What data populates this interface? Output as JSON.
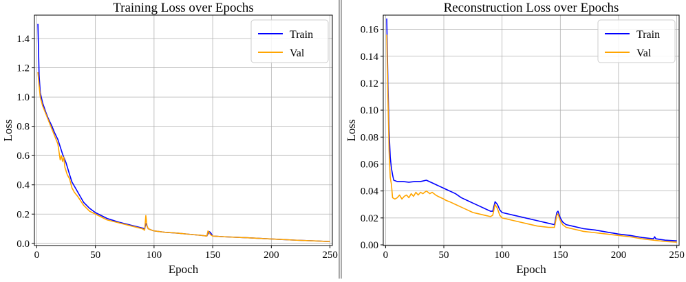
{
  "chart_data": [
    {
      "type": "line",
      "title": "Training Loss over Epochs",
      "xlabel": "Epoch",
      "ylabel": "Loss",
      "xlim": [
        -2,
        252
      ],
      "ylim": [
        -0.015,
        1.56
      ],
      "xticks": [
        0,
        50,
        100,
        150,
        200,
        250
      ],
      "xtick_labels": [
        "0",
        "50",
        "100",
        "150",
        "200",
        "250"
      ],
      "yticks": [
        0.0,
        0.2,
        0.4,
        0.6,
        0.8,
        1.0,
        1.2,
        1.4
      ],
      "ytick_labels": [
        "0.0",
        "0.2",
        "0.4",
        "0.6",
        "0.8",
        "1.0",
        "1.2",
        "1.4"
      ],
      "grid": true,
      "legend_position": "top-right",
      "series": [
        {
          "name": "Train",
          "color": "#0000ff",
          "points": [
            [
              1,
              1.5
            ],
            [
              2,
              1.15
            ],
            [
              3,
              1.03
            ],
            [
              5,
              0.96
            ],
            [
              8,
              0.89
            ],
            [
              10,
              0.85
            ],
            [
              13,
              0.8
            ],
            [
              15,
              0.76
            ],
            [
              18,
              0.71
            ],
            [
              20,
              0.66
            ],
            [
              22,
              0.61
            ],
            [
              25,
              0.55
            ],
            [
              28,
              0.47
            ],
            [
              30,
              0.42
            ],
            [
              35,
              0.35
            ],
            [
              40,
              0.28
            ],
            [
              45,
              0.24
            ],
            [
              50,
              0.21
            ],
            [
              55,
              0.19
            ],
            [
              60,
              0.17
            ],
            [
              70,
              0.145
            ],
            [
              80,
              0.125
            ],
            [
              90,
              0.105
            ],
            [
              92,
              0.1
            ],
            [
              93,
              0.135
            ],
            [
              94,
              0.12
            ],
            [
              95,
              0.1
            ],
            [
              98,
              0.09
            ],
            [
              100,
              0.085
            ],
            [
              110,
              0.075
            ],
            [
              120,
              0.07
            ],
            [
              130,
              0.062
            ],
            [
              140,
              0.055
            ],
            [
              145,
              0.05
            ],
            [
              147,
              0.08
            ],
            [
              148,
              0.075
            ],
            [
              150,
              0.05
            ],
            [
              160,
              0.045
            ],
            [
              180,
              0.038
            ],
            [
              200,
              0.03
            ],
            [
              220,
              0.022
            ],
            [
              240,
              0.016
            ],
            [
              250,
              0.012
            ]
          ]
        },
        {
          "name": "Val",
          "color": "#ffa500",
          "points": [
            [
              1,
              1.17
            ],
            [
              2,
              1.08
            ],
            [
              3,
              1.0
            ],
            [
              5,
              0.94
            ],
            [
              8,
              0.88
            ],
            [
              10,
              0.84
            ],
            [
              13,
              0.78
            ],
            [
              15,
              0.74
            ],
            [
              18,
              0.68
            ],
            [
              20,
              0.57
            ],
            [
              21,
              0.6
            ],
            [
              22,
              0.56
            ],
            [
              23,
              0.59
            ],
            [
              24,
              0.52
            ],
            [
              26,
              0.47
            ],
            [
              28,
              0.44
            ],
            [
              30,
              0.38
            ],
            [
              32,
              0.35
            ],
            [
              35,
              0.32
            ],
            [
              40,
              0.26
            ],
            [
              45,
              0.22
            ],
            [
              50,
              0.2
            ],
            [
              55,
              0.18
            ],
            [
              60,
              0.16
            ],
            [
              70,
              0.14
            ],
            [
              80,
              0.12
            ],
            [
              90,
              0.1
            ],
            [
              92,
              0.09
            ],
            [
              93,
              0.19
            ],
            [
              94,
              0.12
            ],
            [
              95,
              0.1
            ],
            [
              98,
              0.09
            ],
            [
              100,
              0.085
            ],
            [
              110,
              0.075
            ],
            [
              120,
              0.07
            ],
            [
              130,
              0.062
            ],
            [
              140,
              0.055
            ],
            [
              145,
              0.05
            ],
            [
              146,
              0.085
            ],
            [
              147,
              0.075
            ],
            [
              148,
              0.06
            ],
            [
              150,
              0.05
            ],
            [
              160,
              0.045
            ],
            [
              180,
              0.038
            ],
            [
              200,
              0.03
            ],
            [
              220,
              0.022
            ],
            [
              240,
              0.016
            ],
            [
              250,
              0.012
            ]
          ]
        }
      ]
    },
    {
      "type": "line",
      "title": "Reconstruction Loss over Epochs",
      "xlabel": "Epoch",
      "ylabel": "Loss",
      "xlim": [
        -2,
        252
      ],
      "ylim": [
        -0.0005,
        0.1705
      ],
      "xticks": [
        0,
        50,
        100,
        150,
        200,
        250
      ],
      "xtick_labels": [
        "0",
        "50",
        "100",
        "150",
        "200",
        "250"
      ],
      "yticks": [
        0.0,
        0.02,
        0.04,
        0.06,
        0.08,
        0.1,
        0.12,
        0.14,
        0.16
      ],
      "ytick_labels": [
        "0.00",
        "0.02",
        "0.04",
        "0.06",
        "0.08",
        "0.10",
        "0.12",
        "0.14",
        "0.16"
      ],
      "grid": true,
      "legend_position": "top-right",
      "series": [
        {
          "name": "Train",
          "color": "#0000ff",
          "points": [
            [
              1,
              0.168
            ],
            [
              2,
              0.12
            ],
            [
              3,
              0.085
            ],
            [
              4,
              0.065
            ],
            [
              5,
              0.057
            ],
            [
              6,
              0.052
            ],
            [
              7,
              0.048
            ],
            [
              10,
              0.047
            ],
            [
              15,
              0.047
            ],
            [
              20,
              0.0465
            ],
            [
              25,
              0.047
            ],
            [
              30,
              0.047
            ],
            [
              35,
              0.048
            ],
            [
              40,
              0.046
            ],
            [
              45,
              0.044
            ],
            [
              50,
              0.042
            ],
            [
              55,
              0.04
            ],
            [
              60,
              0.038
            ],
            [
              65,
              0.035
            ],
            [
              70,
              0.033
            ],
            [
              75,
              0.031
            ],
            [
              80,
              0.029
            ],
            [
              85,
              0.027
            ],
            [
              90,
              0.025
            ],
            [
              92,
              0.025
            ],
            [
              94,
              0.032
            ],
            [
              96,
              0.03
            ],
            [
              98,
              0.026
            ],
            [
              100,
              0.024
            ],
            [
              110,
              0.022
            ],
            [
              120,
              0.02
            ],
            [
              130,
              0.018
            ],
            [
              140,
              0.016
            ],
            [
              145,
              0.015
            ],
            [
              147,
              0.024
            ],
            [
              148,
              0.025
            ],
            [
              150,
              0.02
            ],
            [
              152,
              0.017
            ],
            [
              155,
              0.015
            ],
            [
              160,
              0.014
            ],
            [
              170,
              0.012
            ],
            [
              180,
              0.011
            ],
            [
              190,
              0.0095
            ],
            [
              200,
              0.008
            ],
            [
              210,
              0.007
            ],
            [
              220,
              0.0055
            ],
            [
              230,
              0.0045
            ],
            [
              231,
              0.006
            ],
            [
              232,
              0.0045
            ],
            [
              240,
              0.0035
            ],
            [
              250,
              0.003
            ]
          ]
        },
        {
          "name": "Val",
          "color": "#ffa500",
          "points": [
            [
              1,
              0.156
            ],
            [
              2,
              0.11
            ],
            [
              3,
              0.07
            ],
            [
              4,
              0.05
            ],
            [
              5,
              0.045
            ],
            [
              6,
              0.035
            ],
            [
              8,
              0.034
            ],
            [
              10,
              0.035
            ],
            [
              12,
              0.037
            ],
            [
              14,
              0.034
            ],
            [
              16,
              0.036
            ],
            [
              18,
              0.037
            ],
            [
              20,
              0.035
            ],
            [
              22,
              0.038
            ],
            [
              24,
              0.036
            ],
            [
              26,
              0.039
            ],
            [
              28,
              0.037
            ],
            [
              30,
              0.039
            ],
            [
              32,
              0.038
            ],
            [
              35,
              0.04
            ],
            [
              38,
              0.038
            ],
            [
              40,
              0.039
            ],
            [
              43,
              0.037
            ],
            [
              45,
              0.036
            ],
            [
              50,
              0.034
            ],
            [
              52,
              0.033
            ],
            [
              55,
              0.032
            ],
            [
              60,
              0.03
            ],
            [
              65,
              0.028
            ],
            [
              70,
              0.026
            ],
            [
              75,
              0.024
            ],
            [
              80,
              0.023
            ],
            [
              85,
              0.022
            ],
            [
              90,
              0.021
            ],
            [
              92,
              0.022
            ],
            [
              94,
              0.03
            ],
            [
              96,
              0.027
            ],
            [
              98,
              0.022
            ],
            [
              100,
              0.02
            ],
            [
              110,
              0.018
            ],
            [
              120,
              0.016
            ],
            [
              130,
              0.014
            ],
            [
              140,
              0.013
            ],
            [
              145,
              0.013
            ],
            [
              147,
              0.022
            ],
            [
              148,
              0.023
            ],
            [
              150,
              0.018
            ],
            [
              152,
              0.015
            ],
            [
              155,
              0.013
            ],
            [
              160,
              0.012
            ],
            [
              170,
              0.01
            ],
            [
              180,
              0.009
            ],
            [
              190,
              0.008
            ],
            [
              200,
              0.007
            ],
            [
              210,
              0.006
            ],
            [
              220,
              0.0045
            ],
            [
              230,
              0.0035
            ],
            [
              240,
              0.0025
            ],
            [
              250,
              0.002
            ]
          ]
        }
      ]
    }
  ]
}
